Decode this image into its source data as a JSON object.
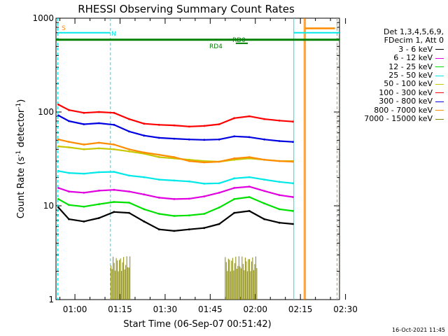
{
  "chart_data": {
    "type": "line",
    "title": "RHESSI Observing Summary Count Rates",
    "xlabel": "Start Time (06-Sep-07 00:51:42)",
    "ylabel_main": "Count Rate (s",
    "ylabel_sup1": "-1",
    "ylabel_mid": " detector",
    "ylabel_sup2": "-1",
    "ylabel_end": ")",
    "y_scale": "log",
    "ylim": [
      1,
      1000
    ],
    "xlim_minutes": [
      53.7,
      148
    ],
    "yticks": [
      {
        "value": 1,
        "label": "1"
      },
      {
        "value": 10,
        "label": "10"
      },
      {
        "value": 100,
        "label": "100"
      },
      {
        "value": 1000,
        "label": "1000"
      }
    ],
    "xticks": [
      {
        "minutes": 60,
        "label": "01:00"
      },
      {
        "minutes": 75,
        "label": "01:15"
      },
      {
        "minutes": 90,
        "label": "01:30"
      },
      {
        "minutes": 105,
        "label": "01:45"
      },
      {
        "minutes": 120,
        "label": "02:00"
      },
      {
        "minutes": 135,
        "label": "02:15"
      },
      {
        "minutes": 150,
        "label": "02:30"
      }
    ],
    "legend_header": [
      "Det 1,3,4,5,6,9,",
      "FDecim 1, Att 0"
    ],
    "series": [
      {
        "name": "3 - 6 keV",
        "color": "#000000",
        "values": [
          9.6,
          7.2,
          6.8,
          7.4,
          8.6,
          8.4,
          6.8,
          5.6,
          5.4,
          5.6,
          5.8,
          6.4,
          8.4,
          8.8,
          7.2,
          6.6,
          6.4
        ]
      },
      {
        "name": "6 - 12 keV",
        "color": "#e000e0",
        "values": [
          15.5,
          14.2,
          13.8,
          14.5,
          14.8,
          14.2,
          13.2,
          12.2,
          11.8,
          11.9,
          12.6,
          13.8,
          15.5,
          16.0,
          14.4,
          13.0,
          12.4
        ]
      },
      {
        "name": "12 - 25 keV",
        "color": "#00e000",
        "values": [
          11.8,
          10.2,
          9.8,
          10.4,
          11.0,
          10.8,
          9.2,
          8.2,
          7.8,
          7.9,
          8.2,
          9.6,
          11.8,
          12.4,
          10.6,
          9.2,
          8.8
        ]
      },
      {
        "name": "25 - 50 keV",
        "color": "#00e8e8",
        "values": [
          23.5,
          22.4,
          22.0,
          22.8,
          23.0,
          21.0,
          20.2,
          19.0,
          18.6,
          18.2,
          17.2,
          17.4,
          19.6,
          20.2,
          19.0,
          18.0,
          17.4
        ]
      },
      {
        "name": "50 - 100 keV",
        "color": "#c8c800",
        "values": [
          43.0,
          42.0,
          40.0,
          41.0,
          40.0,
          38.0,
          36.0,
          33.0,
          32.0,
          31.0,
          30.0,
          29.5,
          31.0,
          32.0,
          31.0,
          30.0,
          30.0
        ]
      },
      {
        "name": "100 - 300 keV",
        "color": "#ff0000",
        "values": [
          120.0,
          105.0,
          98.0,
          100.0,
          98.0,
          84.0,
          75.0,
          73.0,
          72.0,
          70.0,
          71.0,
          74.0,
          86.0,
          90.0,
          84.0,
          81.0,
          79.0
        ]
      },
      {
        "name": "300 - 800 keV",
        "color": "#0000e0",
        "values": [
          92.0,
          80.0,
          74.0,
          76.0,
          73.0,
          62.0,
          56.0,
          53.0,
          52.0,
          51.0,
          50.5,
          51.0,
          55.0,
          54.0,
          51.0,
          49.0,
          48.0
        ]
      },
      {
        "name": "800 - 7000 keV",
        "color": "#ff8c00",
        "values": [
          51.0,
          48.0,
          45.0,
          47.0,
          45.0,
          40.0,
          37.0,
          35.0,
          33.0,
          30.0,
          29.0,
          29.5,
          32.0,
          33.0,
          31.0,
          30.0,
          29.5
        ]
      },
      {
        "name": "7000 - 15000 keV",
        "color": "#888800",
        "values": []
      }
    ],
    "series_x_minutes": [
      54.5,
      58,
      63,
      68,
      73,
      78,
      83,
      88,
      93,
      98,
      103,
      108,
      113,
      118,
      123,
      128,
      132.5
    ],
    "annotations": [
      {
        "label": "S",
        "color": "#ff8c00"
      },
      {
        "label": "N",
        "color": "#00e8e8"
      },
      {
        "label": "RD0",
        "color": "#008000"
      },
      {
        "label": "RD4",
        "color": "#008000"
      }
    ],
    "footer_date": "16-Oct-2021 11:45"
  }
}
